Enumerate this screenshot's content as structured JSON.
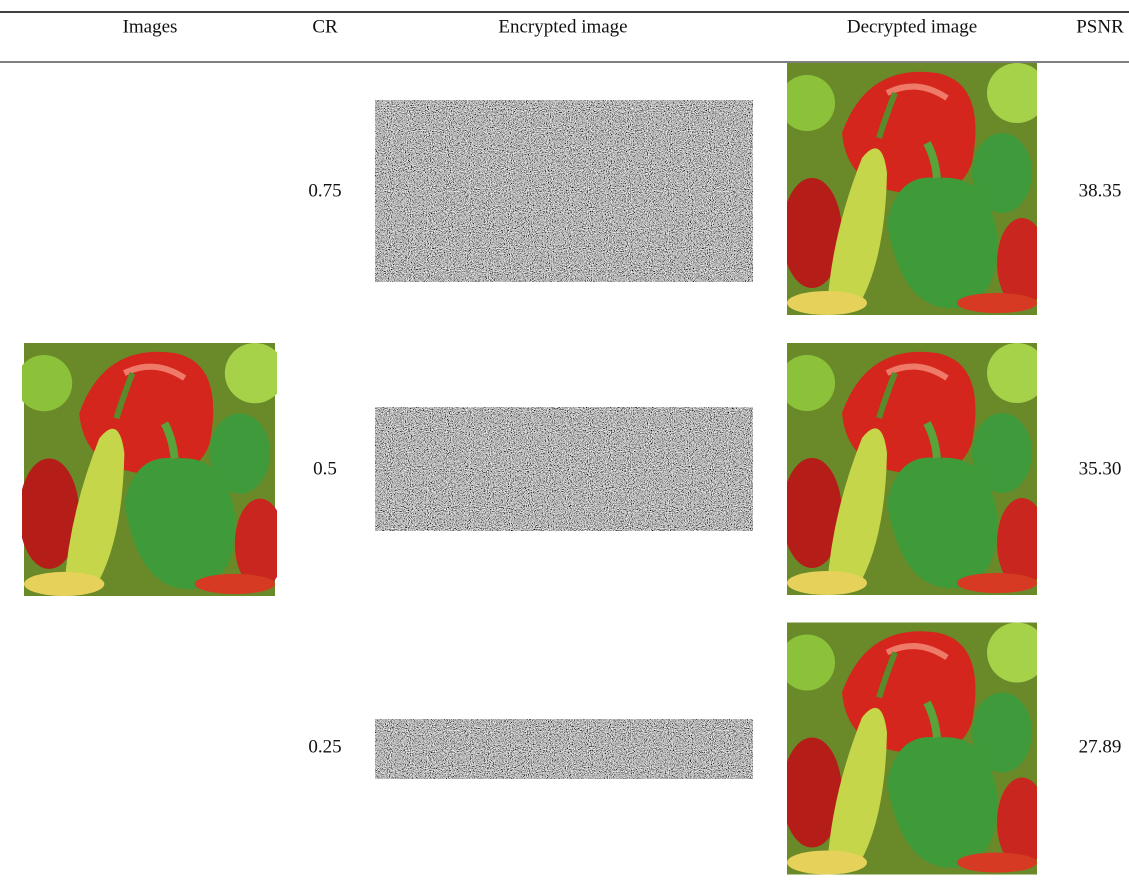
{
  "table": {
    "headers": [
      "Images",
      "CR",
      "Encrypted image",
      "Decrypted image",
      "PSNR"
    ],
    "rows": [
      {
        "cr": "0.75",
        "psnr": "38.35"
      },
      {
        "cr": "0.5",
        "psnr": "35.30"
      },
      {
        "cr": "0.25",
        "psnr": "27.89"
      }
    ]
  }
}
